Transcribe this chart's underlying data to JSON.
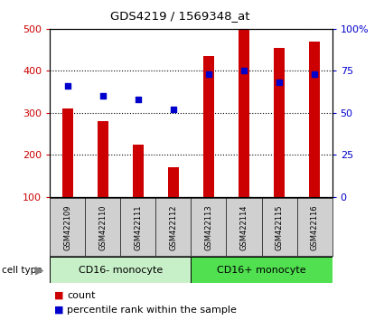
{
  "title": "GDS4219 / 1569348_at",
  "categories": [
    "GSM422109",
    "GSM422110",
    "GSM422111",
    "GSM422112",
    "GSM422113",
    "GSM422114",
    "GSM422115",
    "GSM422116"
  ],
  "counts": [
    310,
    280,
    225,
    170,
    435,
    500,
    455,
    470
  ],
  "percentiles": [
    66,
    60,
    58,
    52,
    73,
    75,
    68,
    73
  ],
  "group1_label": "CD16- monocyte",
  "group2_label": "CD16+ monocyte",
  "group1_indices": [
    0,
    1,
    2,
    3
  ],
  "group2_indices": [
    4,
    5,
    6,
    7
  ],
  "group1_color": "#c8f0c8",
  "group2_color": "#50e050",
  "bar_color": "#cc0000",
  "dot_color": "#0000cc",
  "ylim_left": [
    100,
    500
  ],
  "ylim_right": [
    0,
    100
  ],
  "yticks_left": [
    100,
    200,
    300,
    400,
    500
  ],
  "yticks_right": [
    0,
    25,
    50,
    75,
    100
  ],
  "ytick_labels_right": [
    "0",
    "25",
    "50",
    "75",
    "100%"
  ],
  "cell_type_label": "cell type",
  "legend_count": "count",
  "legend_percentile": "percentile rank within the sample",
  "tick_bg_color": "#d0d0d0",
  "bar_width": 0.3
}
